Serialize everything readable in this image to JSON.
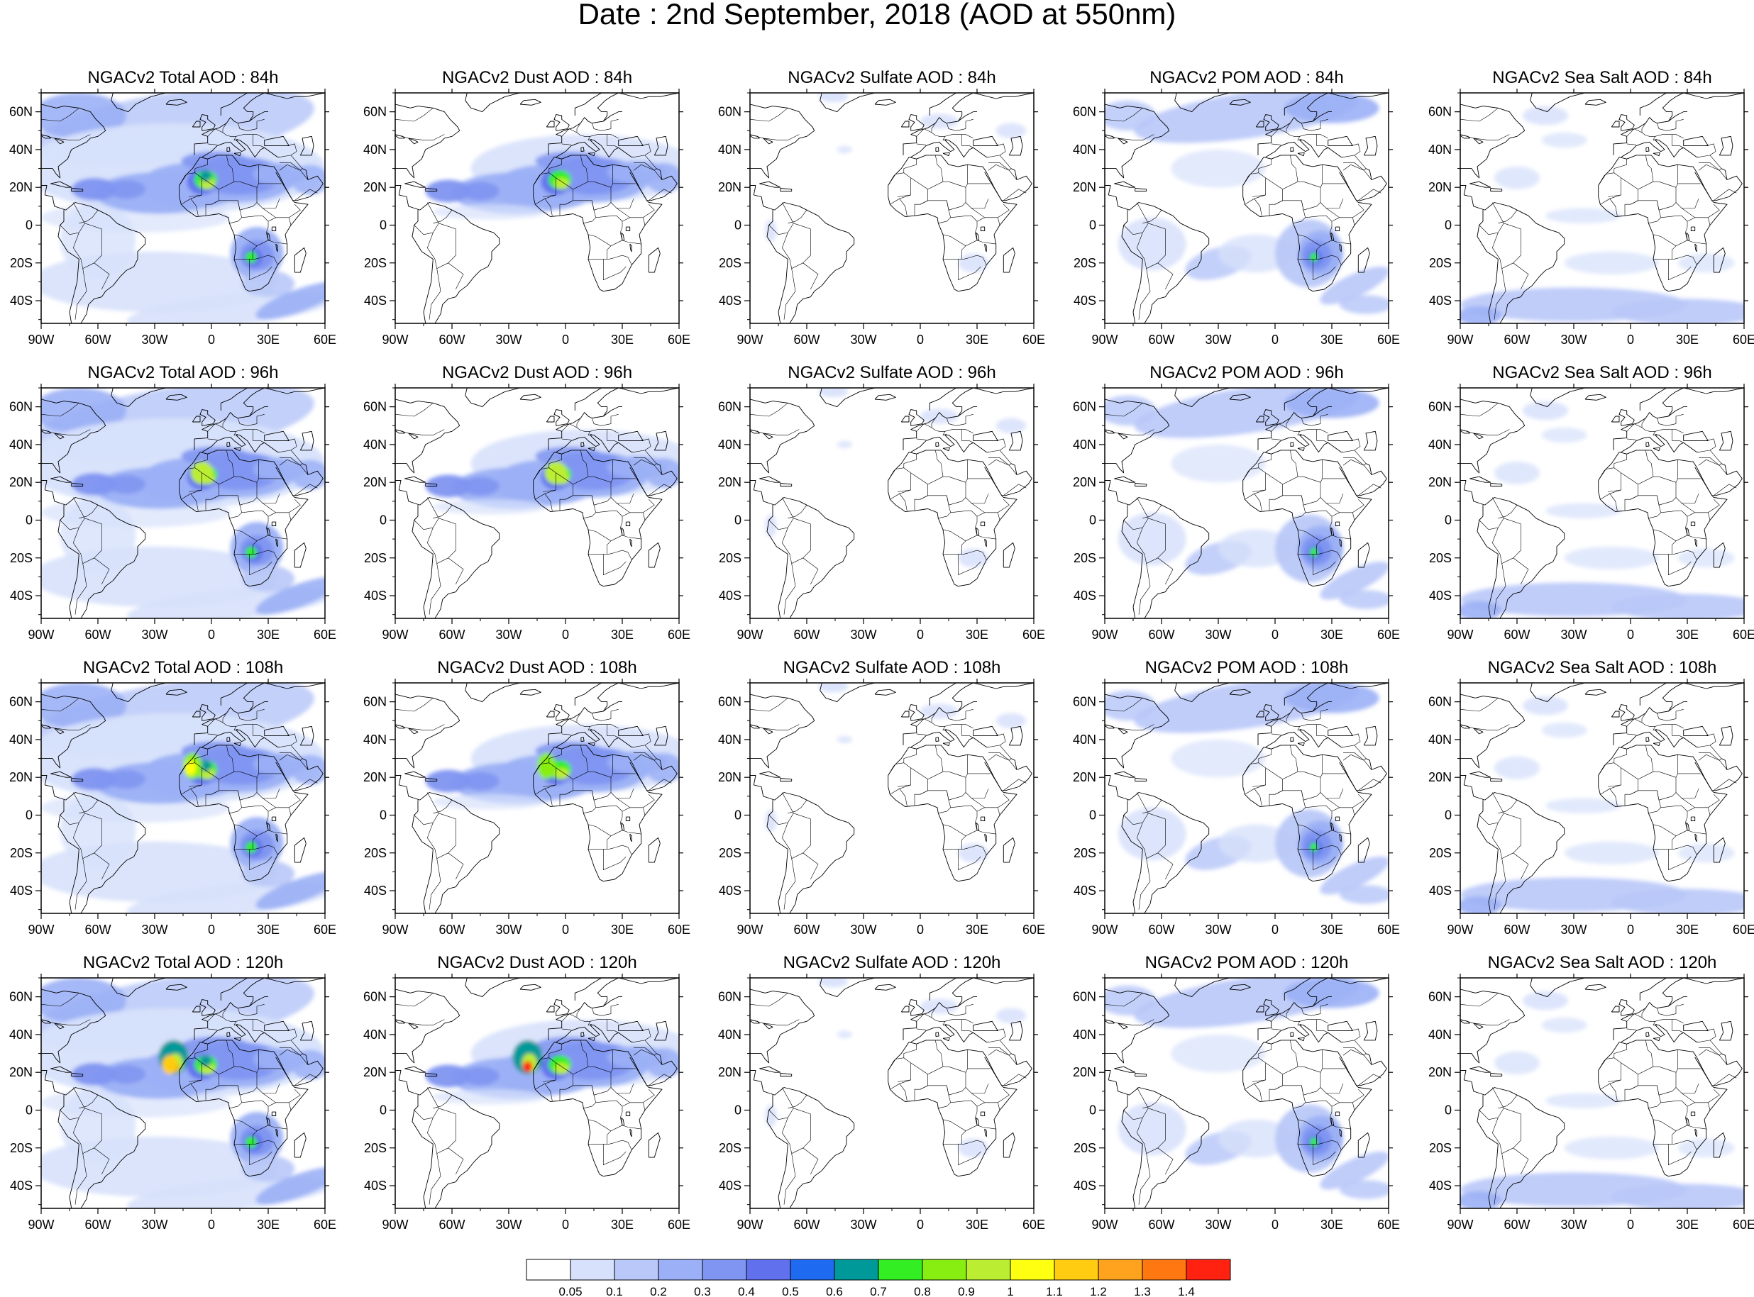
{
  "figure": {
    "title": "Date : 2nd September, 2018 (AOD at 550nm)"
  },
  "axes": {
    "lon_ticks": [
      "90W",
      "60W",
      "30W",
      "0",
      "30E",
      "60E"
    ],
    "lat_ticks": [
      "60N",
      "40N",
      "20N",
      "0",
      "20S",
      "40S"
    ]
  },
  "panels": [
    [
      {
        "title": "NGACv2 Total AOD : 84h",
        "species": "total"
      },
      {
        "title": "NGACv2 Dust AOD : 84h",
        "species": "dust"
      },
      {
        "title": "NGACv2 Sulfate AOD : 84h",
        "species": "sulfate"
      },
      {
        "title": "NGACv2 POM AOD : 84h",
        "species": "pom"
      },
      {
        "title": "NGACv2 Sea Salt AOD : 84h",
        "species": "seasalt"
      }
    ],
    [
      {
        "title": "NGACv2 Total AOD : 96h",
        "species": "total"
      },
      {
        "title": "NGACv2 Dust AOD : 96h",
        "species": "dust"
      },
      {
        "title": "NGACv2 Sulfate AOD : 96h",
        "species": "sulfate"
      },
      {
        "title": "NGACv2 POM AOD : 96h",
        "species": "pom"
      },
      {
        "title": "NGACv2 Sea Salt AOD : 96h",
        "species": "seasalt"
      }
    ],
    [
      {
        "title": "NGACv2 Total AOD : 108h",
        "species": "total"
      },
      {
        "title": "NGACv2 Dust AOD : 108h",
        "species": "dust"
      },
      {
        "title": "NGACv2 Sulfate AOD : 108h",
        "species": "sulfate"
      },
      {
        "title": "NGACv2 POM AOD : 108h",
        "species": "pom"
      },
      {
        "title": "NGACv2 Sea Salt AOD : 108h",
        "species": "seasalt"
      }
    ],
    [
      {
        "title": "NGACv2 Total AOD : 120h",
        "species": "total"
      },
      {
        "title": "NGACv2 Dust AOD : 120h",
        "species": "dust"
      },
      {
        "title": "NGACv2 Sulfate AOD : 120h",
        "species": "sulfate"
      },
      {
        "title": "NGACv2 POM AOD : 120h",
        "species": "pom"
      },
      {
        "title": "NGACv2 Sea Salt  AOD : 120h",
        "species": "seasalt"
      }
    ]
  ],
  "colorbar": {
    "colors": [
      "#ffffff",
      "#d7e1fb",
      "#b9c8f8",
      "#9bb0f6",
      "#7f95f1",
      "#6171ed",
      "#1e6bf2",
      "#009999",
      "#33ee22",
      "#88ee11",
      "#bbee33",
      "#ffff11",
      "#ffcc11",
      "#ffa21e",
      "#ff7711",
      "#ff2211"
    ],
    "labels": [
      "0.05",
      "0.1",
      "0.2",
      "0.3",
      "0.4",
      "0.5",
      "0.6",
      "0.7",
      "0.8",
      "0.9",
      "1",
      "1.1",
      "1.2",
      "1.3",
      "1.4"
    ]
  }
}
